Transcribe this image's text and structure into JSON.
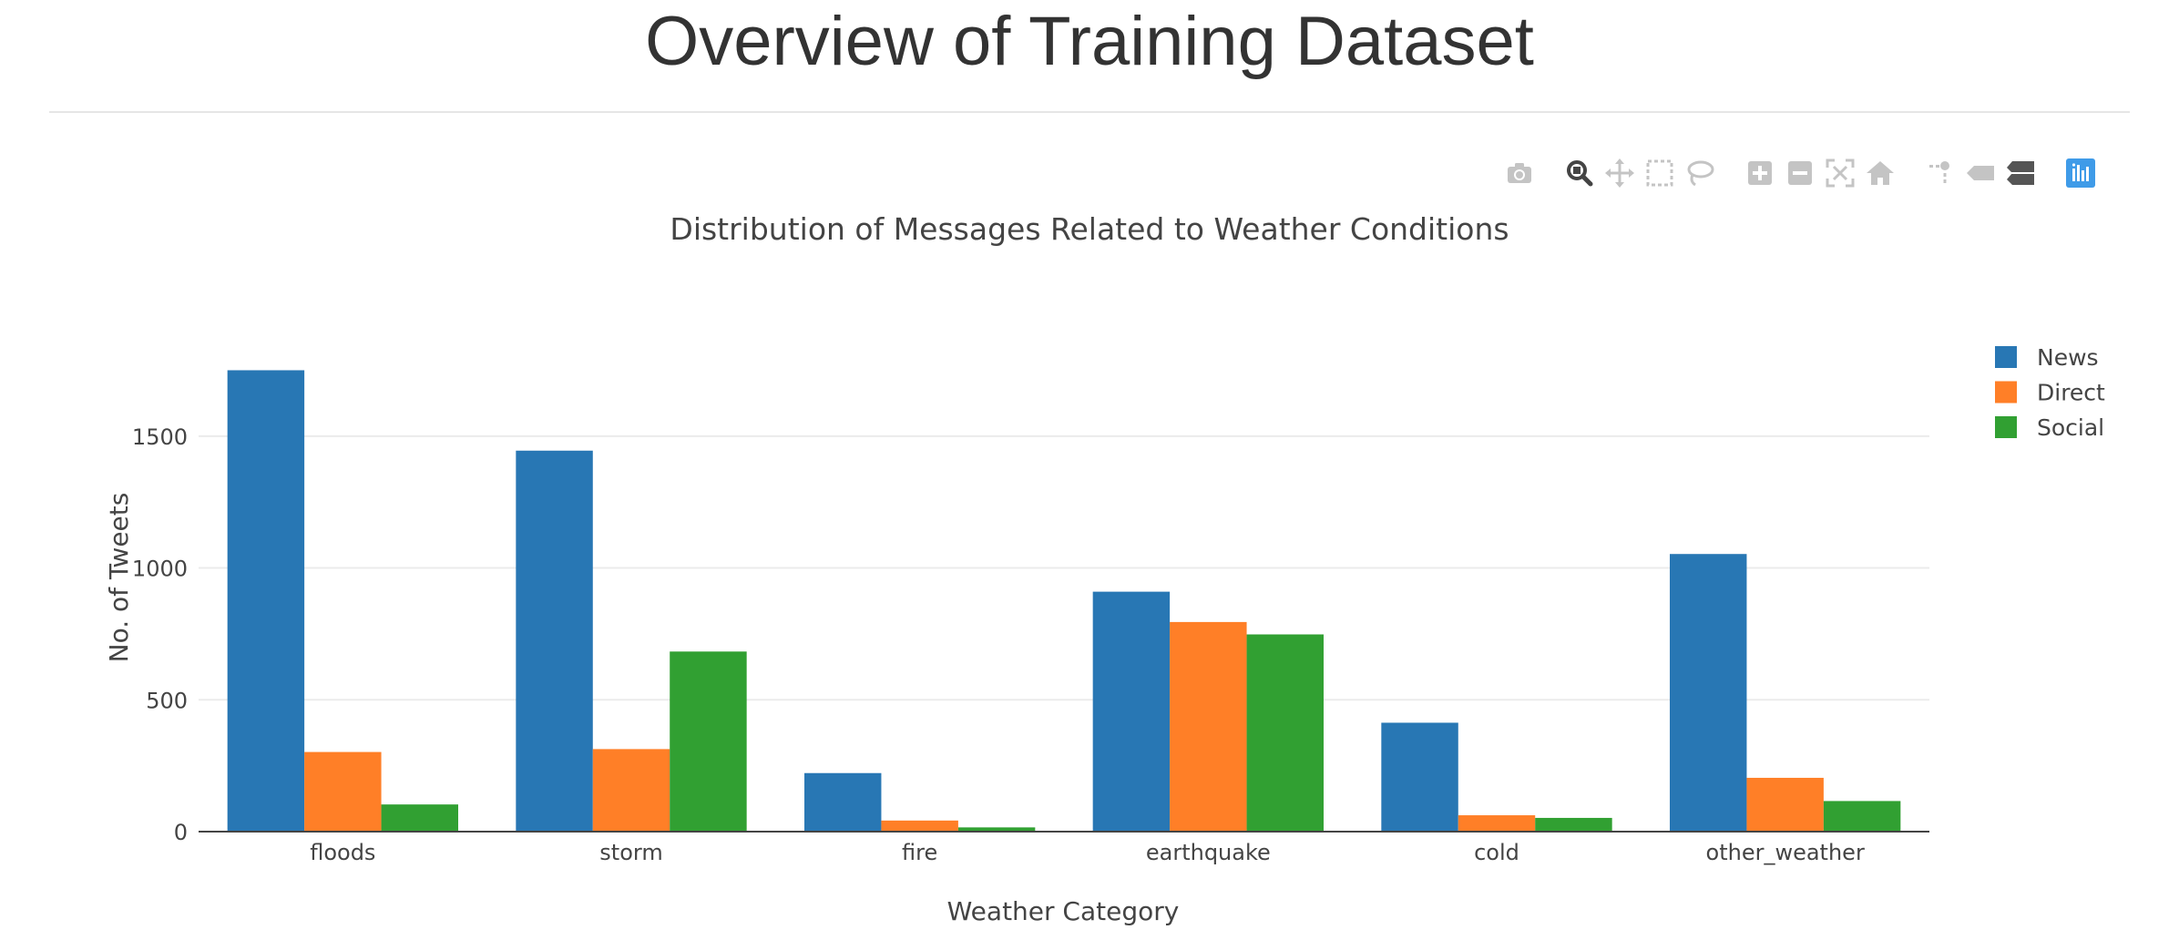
{
  "page": {
    "title": "Overview of Training Dataset"
  },
  "modebar": {
    "buttons": [
      {
        "name": "camera-icon",
        "label": "Download plot as a png"
      },
      {
        "name": "zoom-icon",
        "label": "Zoom"
      },
      {
        "name": "pan-icon",
        "label": "Pan"
      },
      {
        "name": "box-select-icon",
        "label": "Box Select"
      },
      {
        "name": "lasso-select-icon",
        "label": "Lasso Select"
      },
      {
        "name": "zoom-in-icon",
        "label": "Zoom in"
      },
      {
        "name": "zoom-out-icon",
        "label": "Zoom out"
      },
      {
        "name": "autoscale-icon",
        "label": "Autoscale"
      },
      {
        "name": "reset-axes-icon",
        "label": "Reset axes"
      },
      {
        "name": "spike-lines-icon",
        "label": "Toggle Spike Lines"
      },
      {
        "name": "hover-closest-icon",
        "label": "Show closest data on hover"
      },
      {
        "name": "hover-compare-icon",
        "label": "Compare data on hover"
      },
      {
        "name": "plotly-logo-icon",
        "label": "Produced with Plotly"
      }
    ],
    "colors": {
      "inactive": "#c4c4c4",
      "active": "#444444",
      "logo": "#3f9be8"
    }
  },
  "chart_data": {
    "type": "bar",
    "barmode": "group",
    "title": "Distribution of Messages Related to Weather Conditions",
    "xlabel": "Weather Category",
    "ylabel": "No. of Tweets",
    "categories": [
      "floods",
      "storm",
      "fire",
      "earthquake",
      "cold",
      "other_weather"
    ],
    "series": [
      {
        "name": "News",
        "color": "#2877b4",
        "values": [
          1750,
          1445,
          222,
          910,
          413,
          1053
        ]
      },
      {
        "name": "Direct",
        "color": "#ff7f27",
        "values": [
          302,
          313,
          42,
          795,
          62,
          204
        ]
      },
      {
        "name": "Social",
        "color": "#31a032",
        "values": [
          103,
          683,
          16,
          748,
          52,
          116
        ]
      }
    ],
    "ylim": [
      0,
      1800
    ],
    "yticks": [
      0,
      500,
      1000,
      1500
    ],
    "grid": true,
    "legend_position": "top-right"
  }
}
